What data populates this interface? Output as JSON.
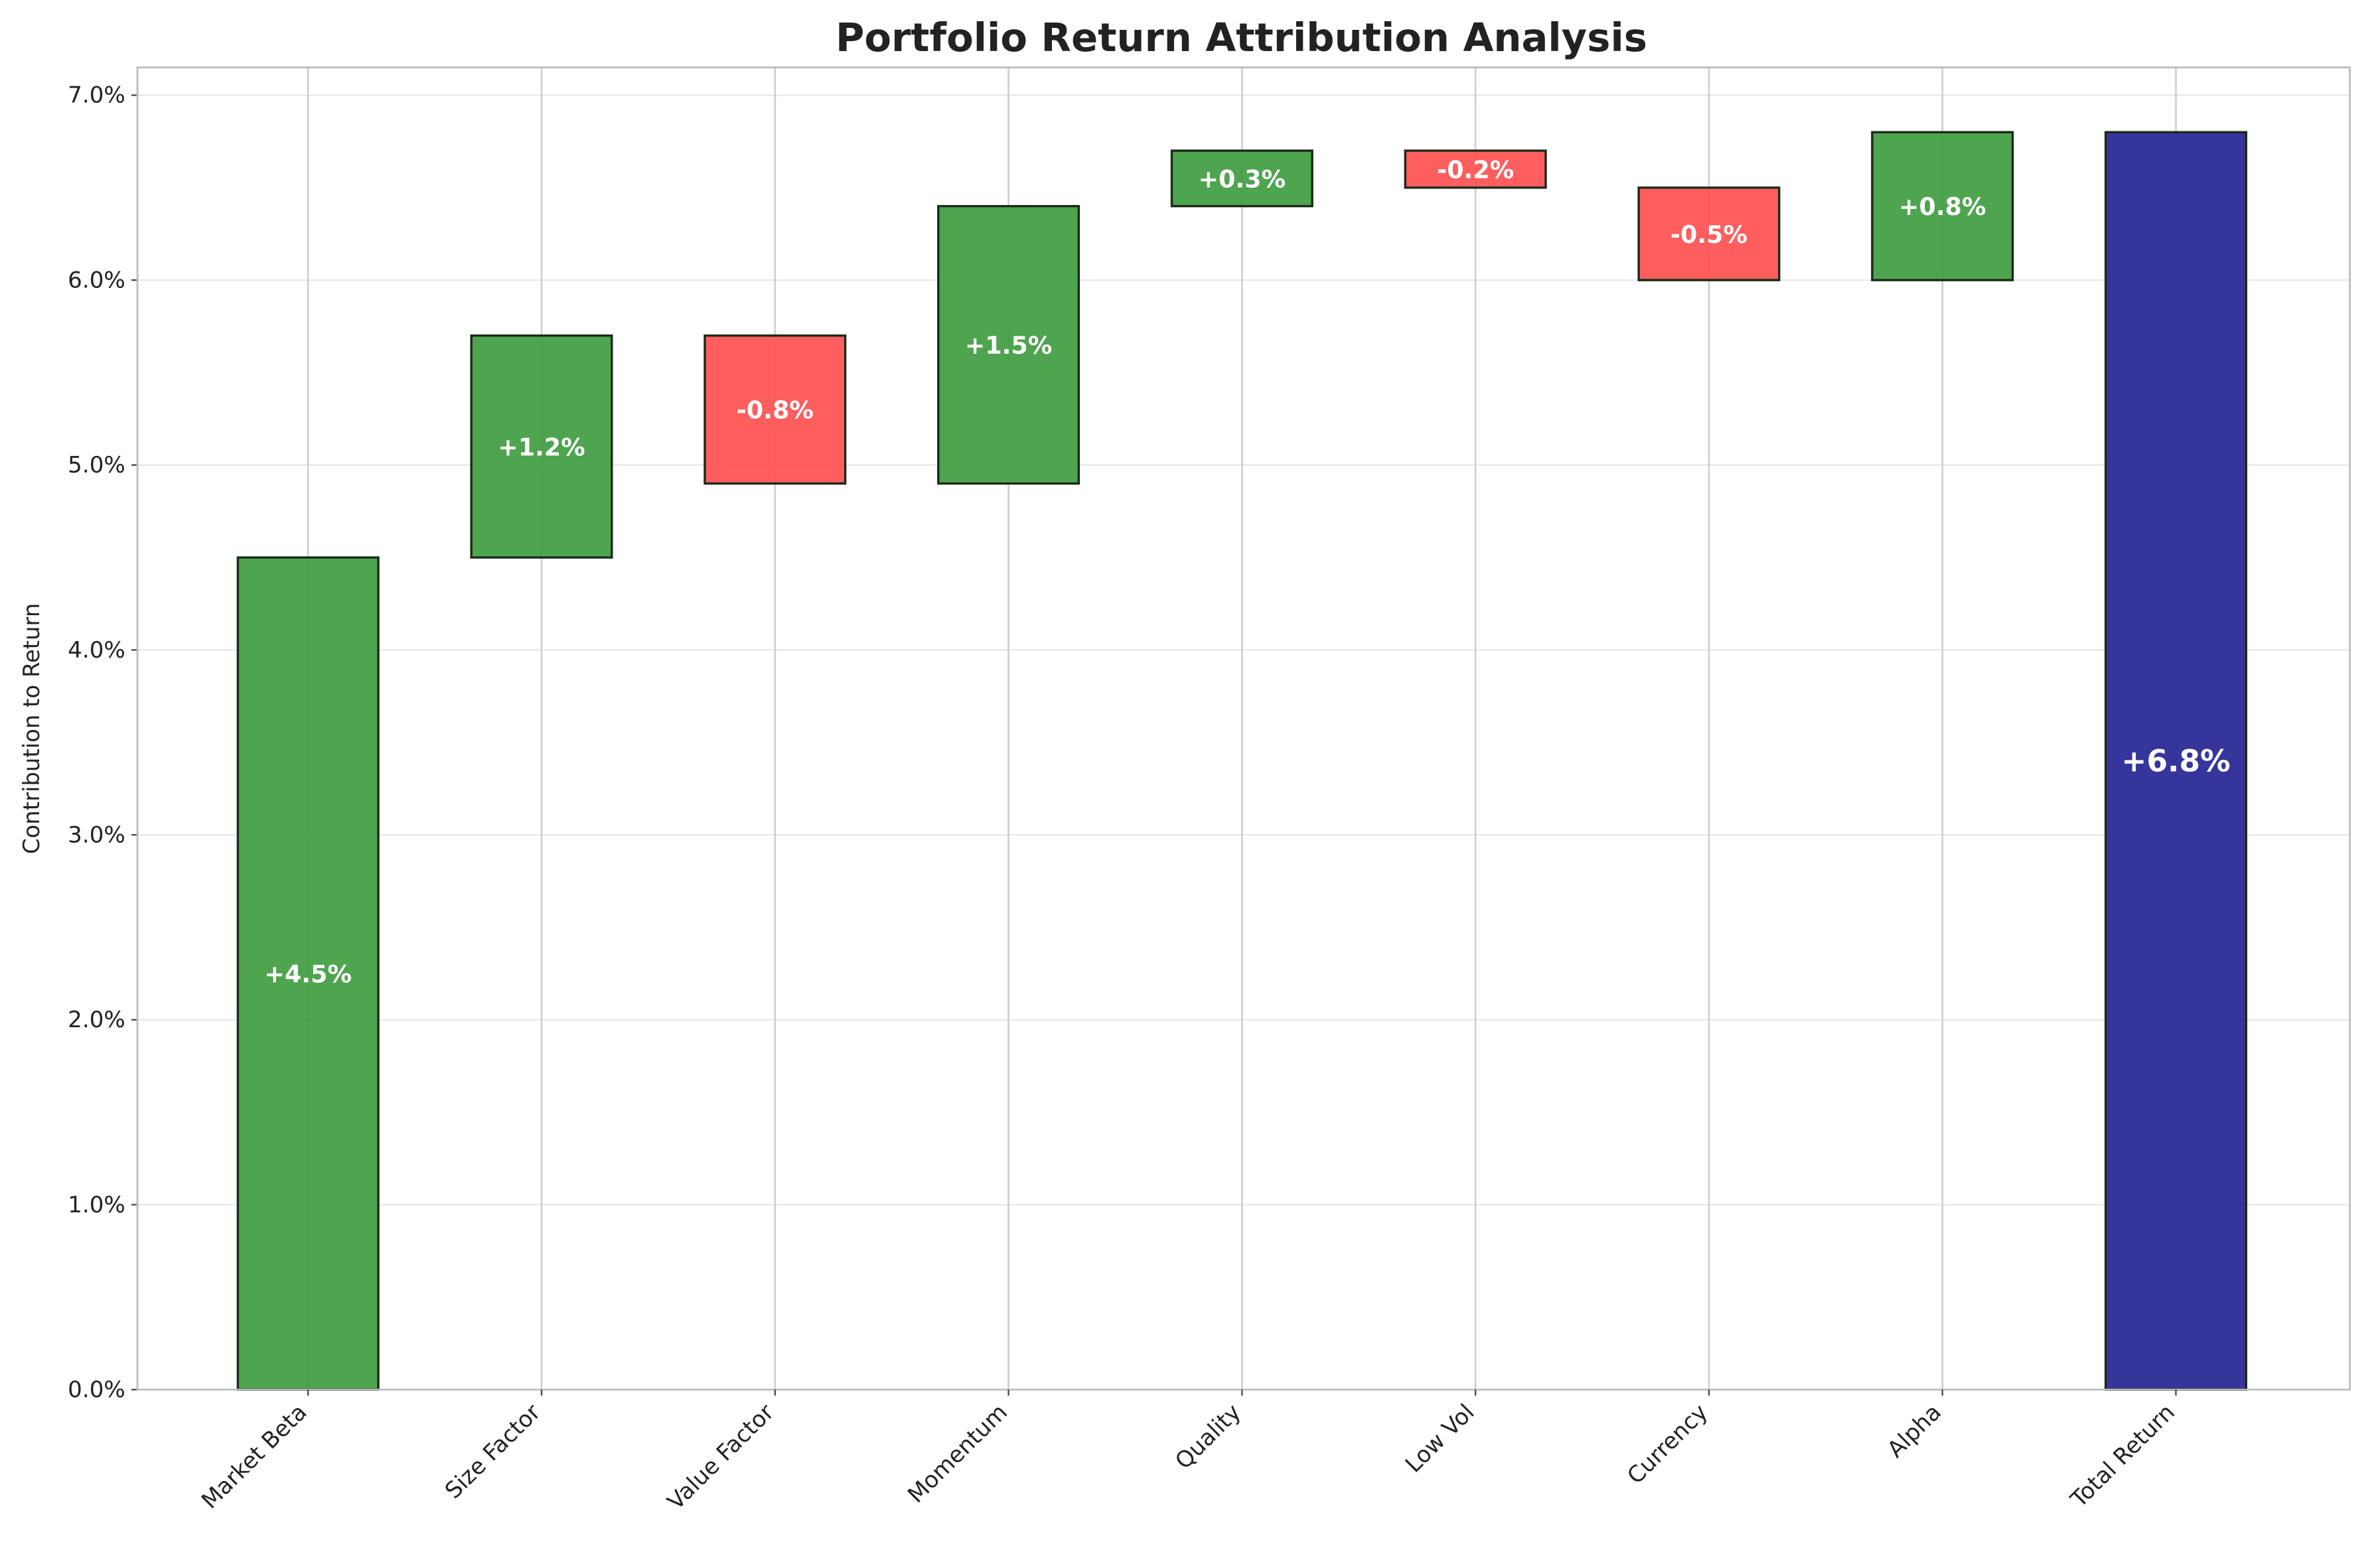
{
  "chart_data": {
    "type": "waterfall",
    "title": "Portfolio Return Attribution Analysis",
    "y_label": "Contribution to Return",
    "categories": [
      "Market Beta",
      "Size Factor",
      "Value Factor",
      "Momentum",
      "Quality",
      "Low Vol",
      "Currency",
      "Alpha",
      "Total Return"
    ],
    "values": [
      4.5,
      1.2,
      -0.8,
      1.5,
      0.3,
      -0.2,
      -0.5,
      0.8,
      6.8
    ],
    "value_labels": [
      "+4.5%",
      "+1.2%",
      "-0.8%",
      "+1.5%",
      "+0.3%",
      "-0.2%",
      "-0.5%",
      "+0.8%",
      "+6.8%"
    ],
    "positive_color": "#3c9a3c",
    "negative_color": "#ff4c4c",
    "total_color": "#2a2a96",
    "ylim": [
      0,
      7.15
    ],
    "yticks": [
      {
        "value": 0,
        "label": "0.0%"
      },
      {
        "value": 1,
        "label": "1.0%"
      },
      {
        "value": 2,
        "label": "2.0%"
      },
      {
        "value": 3,
        "label": "3.0%"
      },
      {
        "value": 4,
        "label": "4.0%"
      },
      {
        "value": 5,
        "label": "5.0%"
      },
      {
        "value": 6,
        "label": "6.0%"
      },
      {
        "value": 7,
        "label": "7.0%"
      }
    ],
    "grid": true
  }
}
